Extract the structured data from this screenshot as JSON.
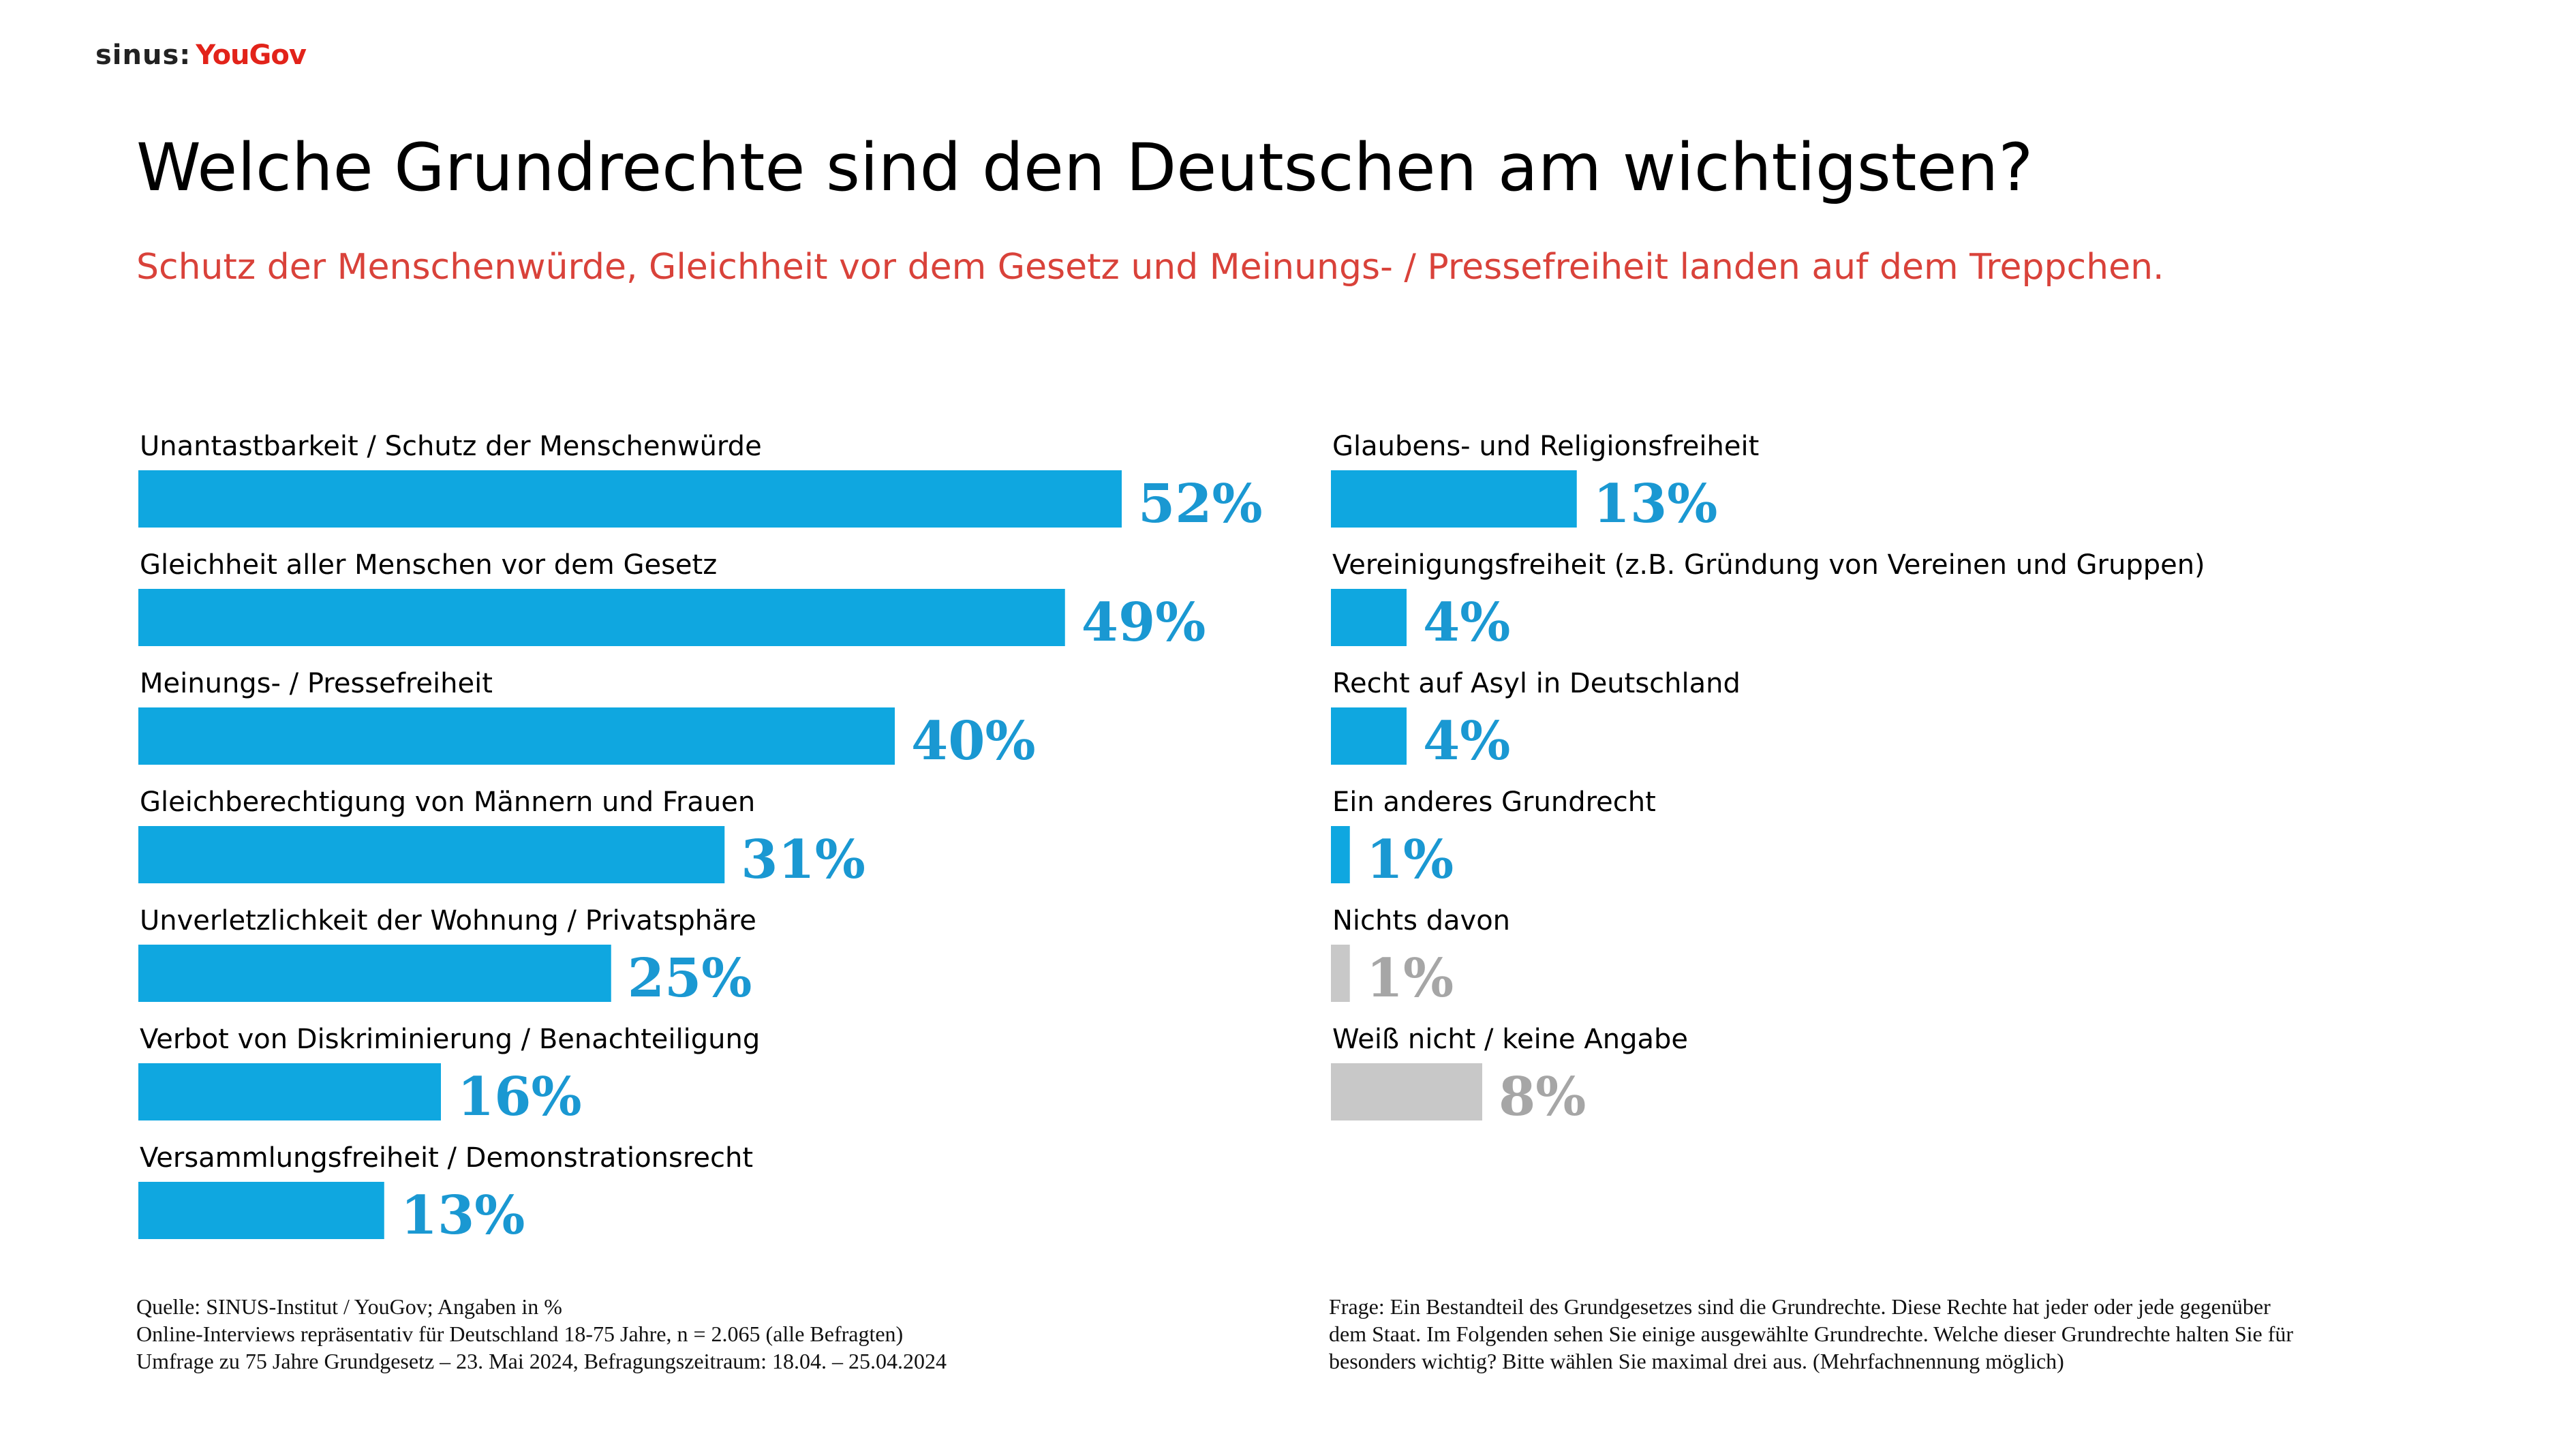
{
  "logo": {
    "sinus": "sinus",
    "yougov": "YouGov"
  },
  "title": "Welche Grundrechte sind den Deutschen am wichtigsten?",
  "subtitle": "Schutz der Menschenwürde, Gleichheit vor dem Gesetz und Meinungs- / Pressefreiheit landen auf dem Treppchen.",
  "colors": {
    "bar": "#0fa7e0",
    "label": "#1a98d2",
    "grey_bar": "#c8c8c8",
    "grey_label": "#a6a6a6",
    "subtitle": "#d9423a"
  },
  "chart_data": {
    "type": "bar",
    "orientation": "horizontal",
    "unit": "%",
    "columns": [
      {
        "bars": [
          {
            "category": "Unantastbarkeit / Schutz der Menschenwürde",
            "value": 52,
            "label": "52%",
            "style": "blue"
          },
          {
            "category": "Gleichheit aller Menschen vor dem Gesetz",
            "value": 49,
            "label": "49%",
            "style": "blue"
          },
          {
            "category": "Meinungs- / Pressefreiheit",
            "value": 40,
            "label": "40%",
            "style": "blue"
          },
          {
            "category": "Gleichberechtigung von Männern und Frauen",
            "value": 31,
            "label": "31%",
            "style": "blue"
          },
          {
            "category": "Unverletzlichkeit der Wohnung / Privatsphäre",
            "value": 25,
            "label": "25%",
            "style": "blue"
          },
          {
            "category": "Verbot von Diskriminierung / Benachteiligung",
            "value": 16,
            "label": "16%",
            "style": "blue"
          },
          {
            "category": "Versammlungsfreiheit / Demonstrationsrecht",
            "value": 13,
            "label": "13%",
            "style": "blue"
          }
        ]
      },
      {
        "bars": [
          {
            "category": "Glaubens- und Religionsfreiheit",
            "value": 13,
            "label": "13%",
            "style": "blue"
          },
          {
            "category": "Vereinigungsfreiheit (z.B. Gründung von Vereinen und Gruppen)",
            "value": 4,
            "label": "4%",
            "style": "blue"
          },
          {
            "category": "Recht auf Asyl in Deutschland",
            "value": 4,
            "label": "4%",
            "style": "blue"
          },
          {
            "category": "Ein anderes Grundrecht",
            "value": 1,
            "label": "1%",
            "style": "blue"
          },
          {
            "category": "Nichts davon",
            "value": 1,
            "label": "1%",
            "style": "grey"
          },
          {
            "category": "Weiß nicht / keine Angabe",
            "value": 8,
            "label": "8%",
            "style": "grey"
          }
        ]
      }
    ]
  },
  "footnote_left": [
    "Quelle: SINUS-Institut / YouGov; Angaben in %",
    "Online-Interviews repräsentativ für Deutschland 18-75 Jahre, n = 2.065 (alle Befragten)",
    "Umfrage zu 75 Jahre Grundgesetz – 23. Mai 2024, Befragungszeitraum: 18.04. – 25.04.2024"
  ],
  "footnote_right": [
    "Frage: Ein Bestandteil des Grundgesetzes sind die Grundrechte. Diese Rechte hat jeder oder jede gegenüber",
    "dem Staat. Im Folgenden sehen Sie einige ausgewählte Grundrechte. Welche dieser Grundrechte halten Sie für",
    "besonders wichtig? Bitte wählen Sie maximal drei aus. (Mehrfachnennung möglich)"
  ]
}
